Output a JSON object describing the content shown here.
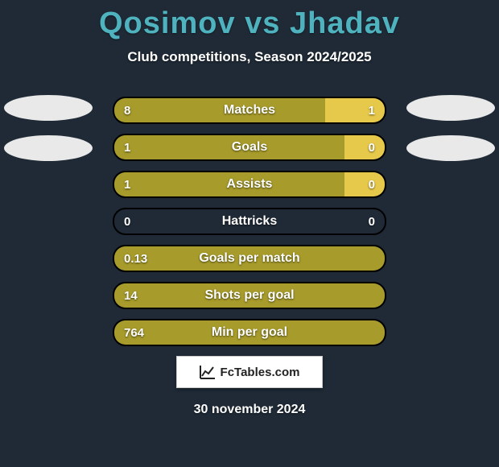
{
  "background_color": "#1f2a36",
  "title": {
    "player1": "Qosimov",
    "vs": "vs",
    "player2": "Jhadav",
    "color": "#4fb3bf",
    "fontsize": 38
  },
  "subtitle": {
    "text": "Club competitions, Season 2024/2025",
    "color": "#ffffff",
    "fontsize": 17
  },
  "clubs": {
    "left": {
      "ellipse1_color": "#e9e9e9",
      "ellipse2_color": "#e9e9e9"
    },
    "right": {
      "ellipse1_color": "#e9e9e9",
      "ellipse2_color": "#e9e9e9"
    }
  },
  "bar_style": {
    "height": 34,
    "gap": 12,
    "radius": 16,
    "border_color": "#000000",
    "border_width": 2,
    "text_color": "#ffffff",
    "label_fontsize": 16,
    "value_fontsize": 15
  },
  "colors": {
    "left": "#a79b2b",
    "right": "#e6c84a",
    "empty": "#1f2a36"
  },
  "stats": [
    {
      "label": "Matches",
      "left_value": "8",
      "right_value": "1",
      "left_pct": 78,
      "right_pct": 22
    },
    {
      "label": "Goals",
      "left_value": "1",
      "right_value": "0",
      "left_pct": 85,
      "right_pct": 15
    },
    {
      "label": "Assists",
      "left_value": "1",
      "right_value": "0",
      "left_pct": 85,
      "right_pct": 15
    },
    {
      "label": "Hattricks",
      "left_value": "0",
      "right_value": "0",
      "left_pct": 0,
      "right_pct": 0
    },
    {
      "label": "Goals per match",
      "left_value": "0.13",
      "right_value": "",
      "left_pct": 100,
      "right_pct": 0
    },
    {
      "label": "Shots per goal",
      "left_value": "14",
      "right_value": "",
      "left_pct": 100,
      "right_pct": 0
    },
    {
      "label": "Min per goal",
      "left_value": "764",
      "right_value": "",
      "left_pct": 100,
      "right_pct": 0
    }
  ],
  "badge": {
    "text": "FcTables.com",
    "bg": "#ffffff",
    "text_color": "#222222",
    "icon_color": "#222222"
  },
  "date": {
    "text": "30 november 2024",
    "color": "#ffffff",
    "fontsize": 16
  }
}
